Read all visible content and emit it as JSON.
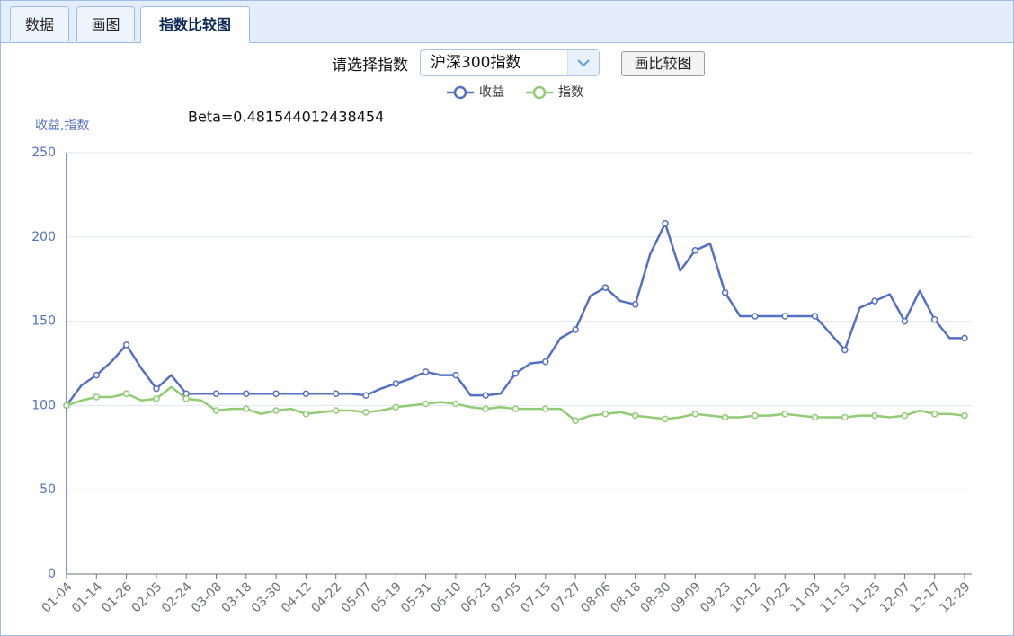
{
  "tabs": [
    "数据",
    "画图",
    "指数比较图"
  ],
  "active_tab": 2,
  "selector": {
    "label": "请选择指数",
    "value": "沪深300指数",
    "button": "画比较图"
  },
  "chart_data": {
    "type": "line",
    "annotation": "Beta=0.481544012438454",
    "y_axis_label": "收益,指数",
    "legend": "top",
    "grid": true,
    "ylim": [
      0,
      250
    ],
    "yticks": [
      0,
      50,
      100,
      150,
      200,
      250
    ],
    "categories": [
      "01-04",
      null,
      "01-14",
      null,
      "01-26",
      null,
      "02-05",
      null,
      "02-24",
      null,
      "03-08",
      null,
      "03-18",
      null,
      "03-30",
      null,
      "04-12",
      null,
      "04-22",
      null,
      "05-07",
      null,
      "05-19",
      null,
      "05-31",
      null,
      "06-10",
      null,
      "06-23",
      null,
      "07-05",
      null,
      "07-15",
      null,
      "07-27",
      null,
      "08-06",
      null,
      "08-18",
      null,
      "08-30",
      null,
      "09-09",
      null,
      "09-23",
      null,
      "10-12",
      null,
      "10-22",
      null,
      "11-03",
      null,
      "11-15",
      null,
      "11-25",
      null,
      "12-07",
      null,
      "12-17",
      null,
      "12-29"
    ],
    "series": [
      {
        "name": "收益",
        "color": "#5470c6",
        "values": [
          100,
          112,
          118,
          126,
          136,
          122,
          110,
          118,
          107,
          107,
          107,
          107,
          107,
          107,
          107,
          107,
          107,
          107,
          107,
          107,
          106,
          110,
          113,
          116,
          120,
          118,
          118,
          106,
          106,
          107,
          119,
          125,
          126,
          140,
          145,
          165,
          170,
          162,
          160,
          190,
          208,
          180,
          192,
          196,
          167,
          153,
          153,
          153,
          153,
          153,
          153,
          143,
          133,
          158,
          162,
          166,
          150,
          168,
          151,
          140,
          140
        ]
      },
      {
        "name": "指数",
        "color": "#91cc75",
        "values": [
          100,
          103,
          105,
          105,
          107,
          103,
          104,
          111,
          104,
          103,
          97,
          98,
          98,
          95,
          97,
          98,
          95,
          96,
          97,
          97,
          96,
          97,
          99,
          100,
          101,
          102,
          101,
          99,
          98,
          99,
          98,
          98,
          98,
          98,
          91,
          94,
          95,
          96,
          94,
          93,
          92,
          93,
          95,
          94,
          93,
          93,
          94,
          94,
          95,
          94,
          93,
          93,
          93,
          94,
          94,
          93,
          94,
          97,
          95,
          95,
          94
        ]
      }
    ]
  }
}
